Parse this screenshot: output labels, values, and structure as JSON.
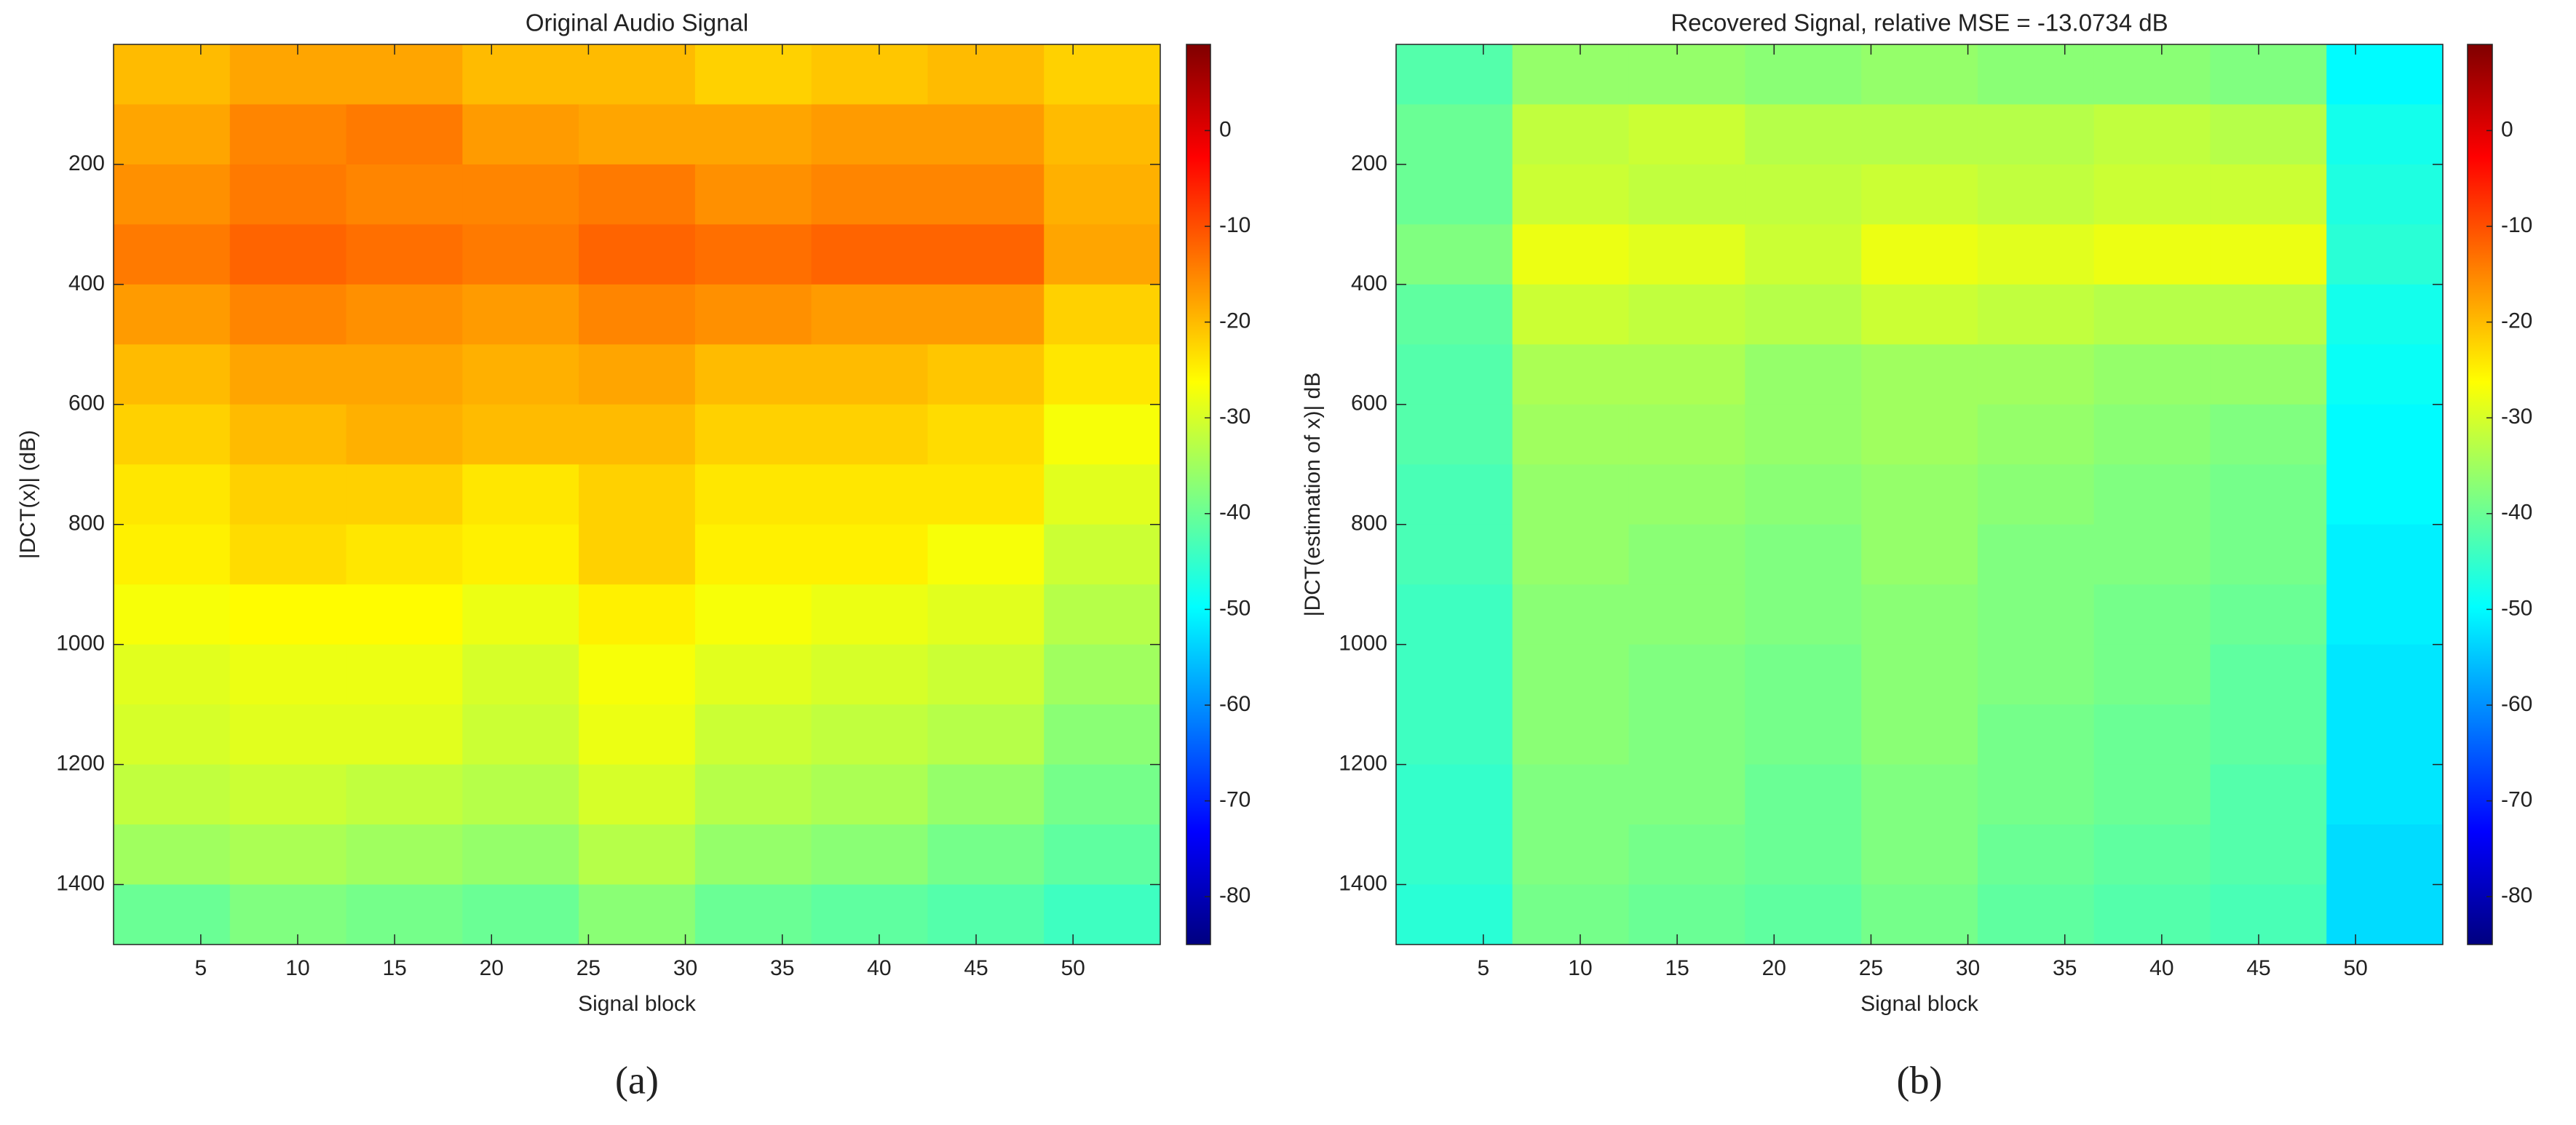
{
  "chart_data": [
    {
      "type": "heatmap",
      "title": "Original Audio Signal",
      "xlabel": "Signal block",
      "ylabel": "|DCT(x)| (dB)",
      "caption": "(a)",
      "xlim": [
        0.5,
        54.5
      ],
      "ylim": [
        0,
        1500
      ],
      "yreverse": true,
      "xticks": [
        5,
        10,
        15,
        20,
        25,
        30,
        35,
        40,
        45,
        50
      ],
      "yticks": [
        200,
        400,
        600,
        800,
        1000,
        1200,
        1400
      ],
      "clim": [
        -85,
        9
      ],
      "cticks": [
        0,
        -10,
        -20,
        -30,
        -40,
        -50,
        -60,
        -70,
        -80
      ],
      "colormap": "jet",
      "z": [
        [
          -20,
          -18,
          -18,
          -20,
          -20,
          -22,
          -21,
          -20,
          -22
        ],
        [
          -18,
          -15,
          -14,
          -17,
          -18,
          -18,
          -17,
          -17,
          -20
        ],
        [
          -16,
          -14,
          -15,
          -15,
          -14,
          -16,
          -15,
          -15,
          -19
        ],
        [
          -14,
          -12,
          -13,
          -14,
          -12,
          -13,
          -12,
          -12,
          -18
        ],
        [
          -17,
          -15,
          -16,
          -17,
          -15,
          -16,
          -17,
          -17,
          -22
        ],
        [
          -20,
          -18,
          -18,
          -19,
          -18,
          -20,
          -20,
          -21,
          -24
        ],
        [
          -22,
          -20,
          -19,
          -20,
          -20,
          -22,
          -22,
          -23,
          -27
        ],
        [
          -24,
          -22,
          -22,
          -24,
          -22,
          -24,
          -24,
          -24,
          -29
        ],
        [
          -25,
          -23,
          -24,
          -25,
          -22,
          -25,
          -25,
          -27,
          -31
        ],
        [
          -27,
          -26,
          -26,
          -28,
          -25,
          -27,
          -28,
          -29,
          -33
        ],
        [
          -29,
          -28,
          -28,
          -30,
          -27,
          -29,
          -30,
          -31,
          -35
        ],
        [
          -30,
          -29,
          -29,
          -31,
          -28,
          -31,
          -32,
          -33,
          -37
        ],
        [
          -32,
          -31,
          -32,
          -33,
          -30,
          -33,
          -34,
          -36,
          -39
        ],
        [
          -35,
          -34,
          -35,
          -36,
          -33,
          -36,
          -37,
          -39,
          -41
        ],
        [
          -40,
          -38,
          -39,
          -40,
          -37,
          -40,
          -41,
          -42,
          -44
        ]
      ]
    },
    {
      "type": "heatmap",
      "title": "Recovered Signal, relative MSE = -13.0734 dB",
      "xlabel": "Signal block",
      "ylabel": "|DCT(estimation of x)| dB",
      "caption": "(b)",
      "xlim": [
        0.5,
        54.5
      ],
      "ylim": [
        0,
        1500
      ],
      "yreverse": true,
      "xticks": [
        5,
        10,
        15,
        20,
        25,
        30,
        35,
        40,
        45,
        50
      ],
      "yticks": [
        200,
        400,
        600,
        800,
        1000,
        1200,
        1400
      ],
      "clim": [
        -85,
        9
      ],
      "cticks": [
        0,
        -10,
        -20,
        -30,
        -40,
        -50,
        -60,
        -70,
        -80
      ],
      "colormap": "jet",
      "z": [
        [
          -42,
          -36,
          -36,
          -37,
          -36,
          -37,
          -37,
          -38,
          -50
        ],
        [
          -40,
          -32,
          -31,
          -33,
          -33,
          -33,
          -32,
          -33,
          -48
        ],
        [
          -40,
          -31,
          -32,
          -32,
          -31,
          -32,
          -31,
          -31,
          -47
        ],
        [
          -38,
          -28,
          -29,
          -31,
          -28,
          -29,
          -28,
          -28,
          -46
        ],
        [
          -41,
          -31,
          -32,
          -33,
          -31,
          -32,
          -33,
          -33,
          -48
        ],
        [
          -42,
          -34,
          -34,
          -36,
          -35,
          -35,
          -36,
          -36,
          -49
        ],
        [
          -42,
          -35,
          -35,
          -36,
          -35,
          -36,
          -37,
          -38,
          -50
        ],
        [
          -43,
          -36,
          -36,
          -37,
          -36,
          -37,
          -38,
          -39,
          -50
        ],
        [
          -43,
          -36,
          -37,
          -38,
          -36,
          -38,
          -38,
          -39,
          -51
        ],
        [
          -44,
          -37,
          -37,
          -38,
          -37,
          -38,
          -39,
          -40,
          -51
        ],
        [
          -44,
          -37,
          -38,
          -39,
          -37,
          -38,
          -39,
          -41,
          -52
        ],
        [
          -44,
          -37,
          -38,
          -39,
          -37,
          -39,
          -40,
          -41,
          -52
        ],
        [
          -45,
          -38,
          -38,
          -40,
          -38,
          -39,
          -40,
          -42,
          -52
        ],
        [
          -45,
          -38,
          -39,
          -40,
          -38,
          -40,
          -41,
          -42,
          -53
        ],
        [
          -46,
          -39,
          -40,
          -41,
          -39,
          -41,
          -42,
          -43,
          -53
        ]
      ]
    }
  ]
}
